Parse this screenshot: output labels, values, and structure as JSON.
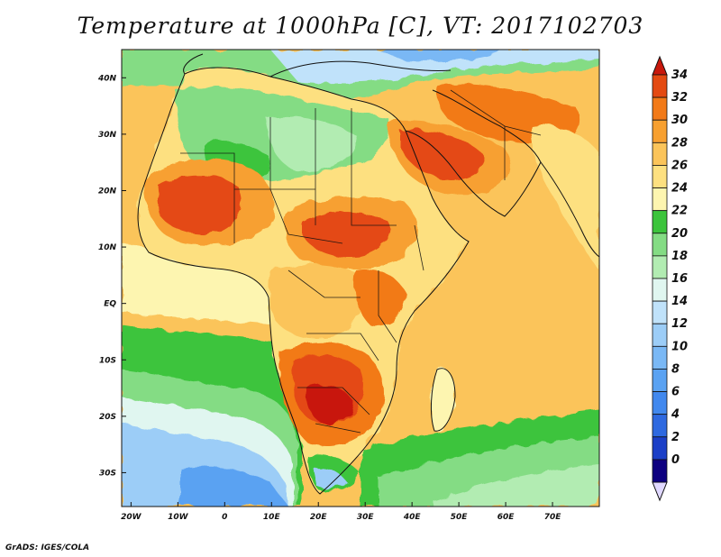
{
  "title": "Temperature at 1000hPa [C], VT: 2017102703",
  "credit": "GrADS: IGES/COLA",
  "map": {
    "lon_range": [
      -22,
      80
    ],
    "lat_range": [
      -36,
      45
    ],
    "lat_ticks": [
      {
        "value": 40,
        "label": "40N"
      },
      {
        "value": 30,
        "label": "30N"
      },
      {
        "value": 20,
        "label": "20N"
      },
      {
        "value": 10,
        "label": "10N"
      },
      {
        "value": 0,
        "label": "EQ"
      },
      {
        "value": -10,
        "label": "10S"
      },
      {
        "value": -20,
        "label": "20S"
      },
      {
        "value": -30,
        "label": "30S"
      }
    ],
    "lon_ticks": [
      {
        "value": -20,
        "label": "20W"
      },
      {
        "value": -10,
        "label": "10W"
      },
      {
        "value": 0,
        "label": "0"
      },
      {
        "value": 10,
        "label": "10E"
      },
      {
        "value": 20,
        "label": "20E"
      },
      {
        "value": 30,
        "label": "30E"
      },
      {
        "value": 40,
        "label": "40E"
      },
      {
        "value": 50,
        "label": "50E"
      },
      {
        "value": 60,
        "label": "60E"
      },
      {
        "value": 70,
        "label": "70E"
      }
    ]
  },
  "colorbar": {
    "levels": [
      {
        "value": "0",
        "color": "#0d0080"
      },
      {
        "value": "2",
        "color": "#1b3fc7"
      },
      {
        "value": "4",
        "color": "#2e69e0"
      },
      {
        "value": "6",
        "color": "#4188ee"
      },
      {
        "value": "8",
        "color": "#5aa2f2"
      },
      {
        "value": "10",
        "color": "#7ab8f5"
      },
      {
        "value": "12",
        "color": "#9ccdf7"
      },
      {
        "value": "14",
        "color": "#c0e2fa"
      },
      {
        "value": "16",
        "color": "#e0f6f0"
      },
      {
        "value": "18",
        "color": "#b2ecb2"
      },
      {
        "value": "20",
        "color": "#84dc84"
      },
      {
        "value": "22",
        "color": "#3cc43c"
      },
      {
        "value": "24",
        "color": "#fdf5b0"
      },
      {
        "value": "26",
        "color": "#fde080"
      },
      {
        "value": "28",
        "color": "#fbc45a"
      },
      {
        "value": "30",
        "color": "#f7a030"
      },
      {
        "value": "32",
        "color": "#f27a18"
      },
      {
        "value": "34",
        "color": "#e44a12"
      }
    ],
    "top_color": "#c8180c",
    "bottom_color": "#e0d8ff"
  }
}
